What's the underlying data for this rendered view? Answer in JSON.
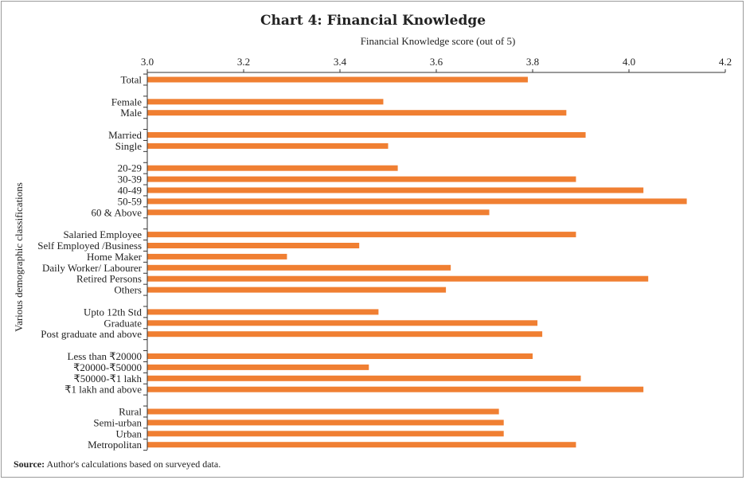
{
  "source_label": "Source:",
  "source_text": "Author's calculations based on surveyed data.",
  "chart_data": {
    "type": "bar",
    "orientation": "horizontal",
    "title": "Chart 4: Financial Knowledge",
    "xlabel": "Financial Knowledge score (out of 5)",
    "ylabel": "Various demographic classifications",
    "xlim": [
      3.0,
      4.2
    ],
    "xticks": [
      "3.0",
      "3.2",
      "3.4",
      "3.6",
      "3.8",
      "4.0",
      "4.2"
    ],
    "bar_color": "#f07f32",
    "grid": false,
    "groups": [
      {
        "categories": [
          "Total"
        ],
        "values": [
          3.79
        ]
      },
      {
        "categories": [
          "Female",
          "Male"
        ],
        "values": [
          3.49,
          3.87
        ]
      },
      {
        "categories": [
          "Married",
          "Single"
        ],
        "values": [
          3.91,
          3.5
        ]
      },
      {
        "categories": [
          "20-29",
          "30-39",
          "40-49",
          "50-59",
          "60 & Above"
        ],
        "values": [
          3.52,
          3.89,
          4.03,
          4.12,
          3.71
        ]
      },
      {
        "categories": [
          "Salaried Employee",
          "Self Employed /Business",
          "Home Maker",
          "Daily Worker/ Labourer",
          "Retired Persons",
          "Others"
        ],
        "values": [
          3.89,
          3.44,
          3.29,
          3.63,
          4.04,
          3.62
        ]
      },
      {
        "categories": [
          "Upto 12th Std",
          "Graduate",
          "Post graduate and above"
        ],
        "values": [
          3.48,
          3.81,
          3.82
        ]
      },
      {
        "categories": [
          "Less than ₹20000",
          "₹20000-₹50000",
          "₹50000-₹1 lakh",
          "₹1 lakh and above"
        ],
        "values": [
          3.8,
          3.46,
          3.9,
          4.03
        ]
      },
      {
        "categories": [
          "Rural",
          "Semi-urban",
          "Urban",
          "Metropolitan"
        ],
        "values": [
          3.73,
          3.74,
          3.74,
          3.89
        ]
      }
    ]
  }
}
